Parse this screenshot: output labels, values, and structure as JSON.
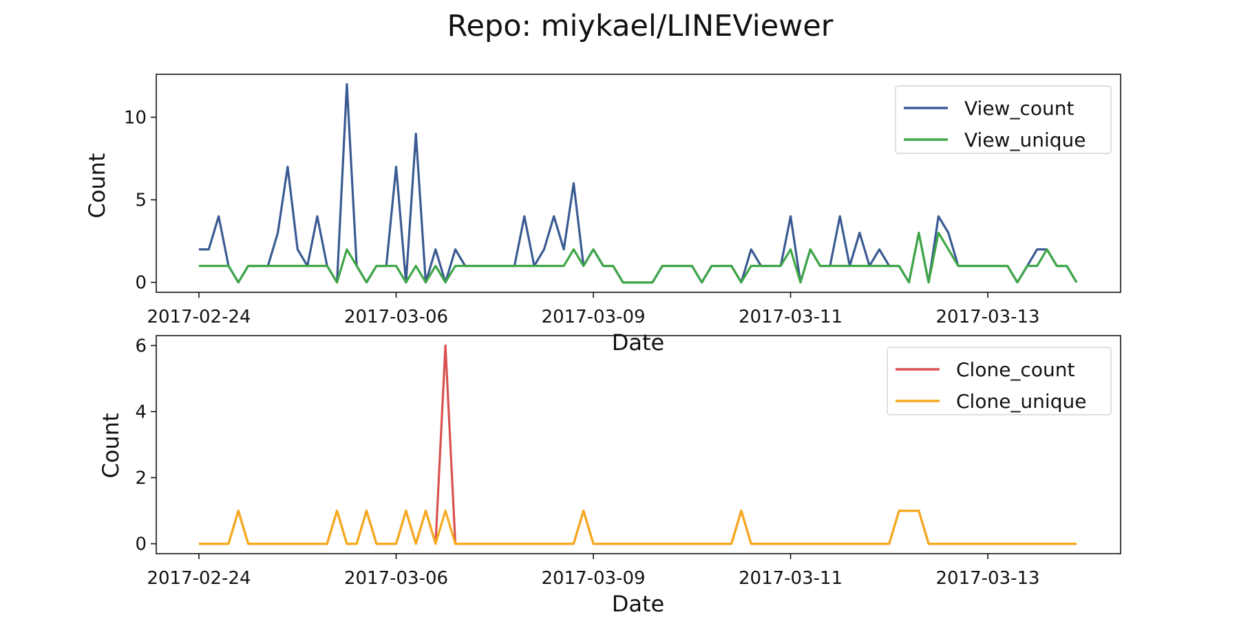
{
  "title": "Repo: miykael/LINEViewer",
  "chart_data": [
    {
      "type": "line",
      "xlabel": "Date",
      "ylabel": "Count",
      "xticks": [
        "2017-02-24",
        "2017-03-06",
        "2017-03-09",
        "2017-03-11",
        "2017-03-13"
      ],
      "yticks": [
        0,
        5,
        10
      ],
      "ylim": [
        -0.6,
        12.6
      ],
      "legend_position": "upper right",
      "series": [
        {
          "name": "View_count",
          "color": "#3a5a92",
          "values": [
            2,
            2,
            4,
            1,
            0,
            1,
            1,
            1,
            3,
            7,
            2,
            1,
            4,
            1,
            0,
            12,
            1,
            0,
            1,
            1,
            7,
            0,
            9,
            0,
            2,
            0,
            2,
            1,
            1,
            1,
            1,
            1,
            1,
            4,
            1,
            2,
            4,
            2,
            6,
            1,
            2,
            1,
            1,
            0,
            0,
            0,
            0,
            1,
            1,
            1,
            1,
            0,
            1,
            1,
            1,
            0,
            2,
            1,
            1,
            1,
            4,
            0,
            2,
            1,
            1,
            4,
            1,
            3,
            1,
            2,
            1,
            1,
            0,
            3,
            0,
            4,
            3,
            1,
            1,
            1,
            1,
            1,
            1,
            0,
            1,
            2,
            2,
            1,
            1,
            0
          ]
        },
        {
          "name": "View_unique",
          "color": "#3ea646",
          "values": [
            1,
            1,
            1,
            1,
            0,
            1,
            1,
            1,
            1,
            1,
            1,
            1,
            1,
            1,
            0,
            2,
            1,
            0,
            1,
            1,
            1,
            0,
            1,
            0,
            1,
            0,
            1,
            1,
            1,
            1,
            1,
            1,
            1,
            1,
            1,
            1,
            1,
            1,
            2,
            1,
            2,
            1,
            1,
            0,
            0,
            0,
            0,
            1,
            1,
            1,
            1,
            0,
            1,
            1,
            1,
            0,
            1,
            1,
            1,
            1,
            2,
            0,
            2,
            1,
            1,
            1,
            1,
            1,
            1,
            1,
            1,
            1,
            0,
            3,
            0,
            3,
            2,
            1,
            1,
            1,
            1,
            1,
            1,
            0,
            1,
            1,
            2,
            1,
            1,
            0
          ]
        }
      ]
    },
    {
      "type": "line",
      "xlabel": "Date",
      "ylabel": "Count",
      "xticks": [
        "2017-02-24",
        "2017-03-06",
        "2017-03-09",
        "2017-03-11",
        "2017-03-13"
      ],
      "yticks": [
        0,
        2,
        4,
        6
      ],
      "ylim": [
        -0.3,
        6.3
      ],
      "legend_position": "upper right",
      "series": [
        {
          "name": "Clone_count",
          "color": "#d9514e",
          "values": [
            0,
            0,
            0,
            0,
            1,
            0,
            0,
            0,
            0,
            0,
            0,
            0,
            0,
            0,
            1,
            0,
            0,
            1,
            0,
            0,
            0,
            1,
            0,
            1,
            0,
            6,
            0,
            0,
            0,
            0,
            0,
            0,
            0,
            0,
            0,
            0,
            0,
            0,
            0,
            1,
            0,
            0,
            0,
            0,
            0,
            0,
            0,
            0,
            0,
            0,
            0,
            0,
            0,
            0,
            0,
            1,
            0,
            0,
            0,
            0,
            0,
            0,
            0,
            0,
            0,
            0,
            0,
            0,
            0,
            0,
            0,
            1,
            1,
            1,
            0,
            0,
            0,
            0,
            0,
            0,
            0,
            0,
            0,
            0,
            0,
            0,
            0,
            0,
            0,
            0
          ]
        },
        {
          "name": "Clone_unique",
          "color": "#f6aa1c",
          "values": [
            0,
            0,
            0,
            0,
            1,
            0,
            0,
            0,
            0,
            0,
            0,
            0,
            0,
            0,
            1,
            0,
            0,
            1,
            0,
            0,
            0,
            1,
            0,
            1,
            0,
            1,
            0,
            0,
            0,
            0,
            0,
            0,
            0,
            0,
            0,
            0,
            0,
            0,
            0,
            1,
            0,
            0,
            0,
            0,
            0,
            0,
            0,
            0,
            0,
            0,
            0,
            0,
            0,
            0,
            0,
            1,
            0,
            0,
            0,
            0,
            0,
            0,
            0,
            0,
            0,
            0,
            0,
            0,
            0,
            0,
            0,
            1,
            1,
            1,
            0,
            0,
            0,
            0,
            0,
            0,
            0,
            0,
            0,
            0,
            0,
            0,
            0,
            0,
            0,
            0
          ]
        }
      ]
    }
  ]
}
